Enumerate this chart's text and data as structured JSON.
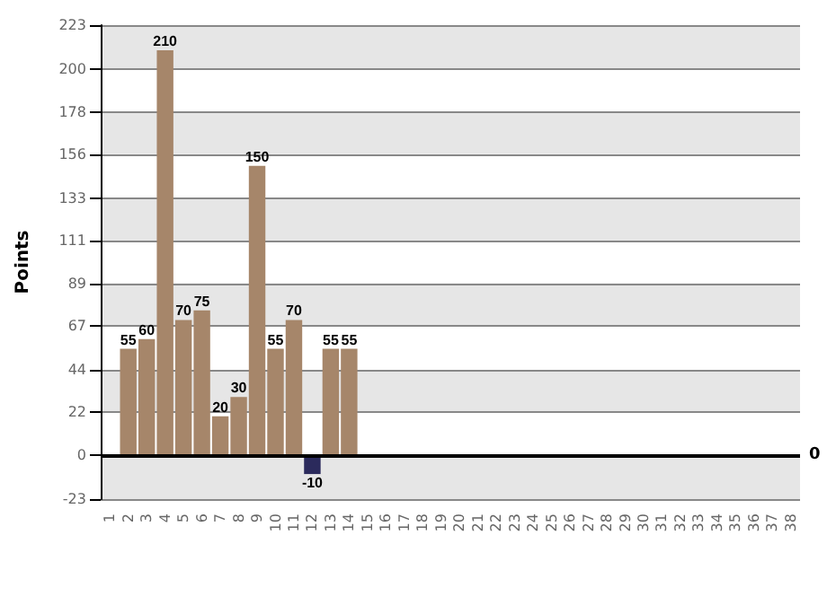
{
  "chart_data": {
    "type": "bar",
    "ylabel": "Points",
    "categories": [
      "1",
      "2",
      "3",
      "4",
      "5",
      "6",
      "7",
      "8",
      "9",
      "10",
      "11",
      "12",
      "13",
      "14",
      "15",
      "16",
      "17",
      "18",
      "19",
      "20",
      "21",
      "22",
      "23",
      "24",
      "25",
      "26",
      "27",
      "28",
      "29",
      "30",
      "31",
      "32",
      "33",
      "34",
      "35",
      "36",
      "37",
      "38"
    ],
    "values": [
      null,
      55,
      60,
      210,
      70,
      75,
      20,
      30,
      150,
      55,
      70,
      -10,
      55,
      55,
      null,
      null,
      null,
      null,
      null,
      null,
      null,
      null,
      null,
      null,
      null,
      null,
      null,
      null,
      null,
      null,
      null,
      null,
      null,
      null,
      null,
      null,
      null,
      null
    ],
    "colors": [
      "#a6866a",
      "#a6866a",
      "#a6866a",
      "#a6866a",
      "#a6866a",
      "#a6866a",
      "#a6866a",
      "#a6866a",
      "#a6866a",
      "#a6866a",
      "#a6866a",
      "#2b2a5c",
      "#a6866a",
      "#a6866a",
      "#a6866a",
      "#a6866a",
      "#a6866a",
      "#a6866a",
      "#a6866a",
      "#a6866a",
      "#a6866a",
      "#a6866a",
      "#a6866a",
      "#a6866a",
      "#a6866a",
      "#a6866a",
      "#a6866a",
      "#a6866a",
      "#a6866a",
      "#a6866a",
      "#a6866a",
      "#a6866a",
      "#a6866a",
      "#a6866a",
      "#a6866a",
      "#a6866a",
      "#a6866a",
      "#a6866a"
    ],
    "ylim": [
      -23,
      223
    ],
    "yticks": [
      -23,
      0,
      22,
      44,
      67,
      89,
      111,
      133,
      156,
      178,
      200,
      223
    ],
    "grid": "y",
    "data_labels": true,
    "ref_lines": [
      {
        "axis": "y",
        "value": 0,
        "label": "0",
        "color": "#000000"
      }
    ]
  }
}
